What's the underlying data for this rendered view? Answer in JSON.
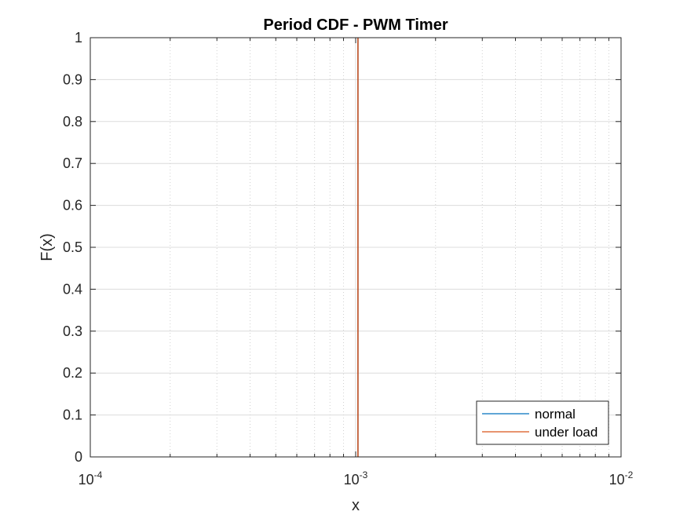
{
  "chart_data": {
    "type": "line",
    "title": "Period CDF - PWM Timer",
    "xlabel": "x",
    "ylabel": "F(x)",
    "xscale": "log",
    "xlim": [
      0.0001,
      0.01
    ],
    "ylim": [
      0,
      1
    ],
    "x_ticks": [
      {
        "base": "10",
        "exp": "-4",
        "value": 0.0001
      },
      {
        "base": "10",
        "exp": "-3",
        "value": 0.001
      },
      {
        "base": "10",
        "exp": "-2",
        "value": 0.01
      }
    ],
    "y_ticks": [
      "0",
      "0.1",
      "0.2",
      "0.3",
      "0.4",
      "0.5",
      "0.6",
      "0.7",
      "0.8",
      "0.9",
      "1"
    ],
    "grid": true,
    "legend_position": "bottom-right",
    "series": [
      {
        "name": "normal",
        "color": "#0072BD",
        "x": [
          0.00102,
          0.00102
        ],
        "y": [
          0,
          1
        ]
      },
      {
        "name": "under load",
        "color": "#D95319",
        "x": [
          0.00102,
          0.00102
        ],
        "y": [
          0,
          1
        ]
      }
    ]
  }
}
